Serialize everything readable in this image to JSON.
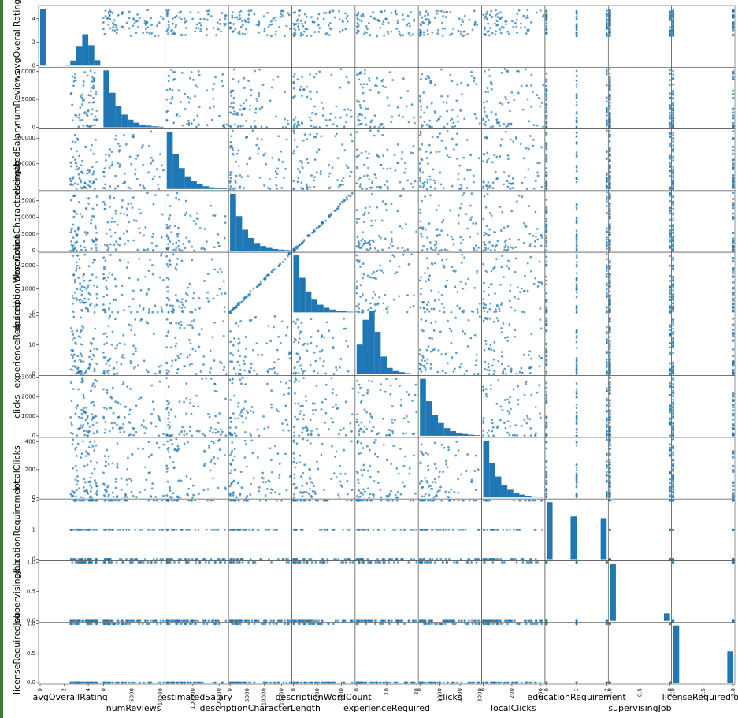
{
  "chart_data": {
    "type": "scatter",
    "variables": [
      {
        "name": "avgOverallRating",
        "range": [
          0,
          5
        ],
        "ticks": [
          {
            "v": 0,
            "t": "0"
          },
          {
            "v": 2,
            "t": "2"
          },
          {
            "v": 4,
            "t": "4"
          }
        ]
      },
      {
        "name": "numReviews",
        "range": [
          0,
          10500
        ],
        "ticks": [
          {
            "v": 0,
            "t": "0"
          },
          {
            "v": 5000,
            "t": "5000"
          },
          {
            "v": 10000,
            "t": "10000"
          }
        ]
      },
      {
        "name": "estimatedSalary",
        "range": [
          0,
          230000
        ],
        "ticks": [
          {
            "v": 100000,
            "t": "100000"
          },
          {
            "v": 200000,
            "t": "200000"
          }
        ]
      },
      {
        "name": "descriptionCharacterLength",
        "range": [
          0,
          17500
        ],
        "ticks": [
          {
            "v": 0,
            "t": "0"
          },
          {
            "v": 5000,
            "t": "5000"
          },
          {
            "v": 10000,
            "t": "10000"
          },
          {
            "v": 15000,
            "t": "15000"
          }
        ]
      },
      {
        "name": "descriptionWordCount",
        "range": [
          0,
          2500
        ],
        "ticks": [
          {
            "v": 0,
            "t": "0"
          },
          {
            "v": 1000,
            "t": "1000"
          },
          {
            "v": 2000,
            "t": "2000"
          }
        ]
      },
      {
        "name": "experienceRequired",
        "range": [
          0,
          20
        ],
        "ticks": [
          {
            "v": 0,
            "t": "0"
          },
          {
            "v": 10,
            "t": "10"
          },
          {
            "v": 20,
            "t": "20"
          }
        ]
      },
      {
        "name": "clicks",
        "range": [
          0,
          3000
        ],
        "ticks": [
          {
            "v": 0,
            "t": "0"
          },
          {
            "v": 1000,
            "t": "1000"
          },
          {
            "v": 2000,
            "t": "2000"
          },
          {
            "v": 3000,
            "t": "3000"
          }
        ]
      },
      {
        "name": "localClicks",
        "range": [
          0,
          420
        ],
        "ticks": [
          {
            "v": 0,
            "t": "0"
          },
          {
            "v": 200,
            "t": "200"
          },
          {
            "v": 400,
            "t": "400"
          }
        ]
      },
      {
        "name": "educationRequirement",
        "range": [
          0,
          2
        ],
        "ticks": [
          {
            "v": 0,
            "t": "0"
          },
          {
            "v": 1,
            "t": "1"
          },
          {
            "v": 2,
            "t": "2"
          }
        ]
      },
      {
        "name": "supervisingJob",
        "range": [
          0,
          1
        ],
        "ticks": [
          {
            "v": 0,
            "t": "0.0"
          },
          {
            "v": 0.5,
            "t": "0.5"
          },
          {
            "v": 1,
            "t": "1.0"
          }
        ]
      },
      {
        "name": "licenseRequiredJob",
        "range": [
          0,
          1
        ],
        "ticks": [
          {
            "v": 0,
            "t": "0.0"
          },
          {
            "v": 0.5,
            "t": "0.5"
          },
          {
            "v": 1,
            "t": "1.0"
          }
        ]
      }
    ],
    "color": "#1f77b4",
    "grid": false,
    "legend": "none",
    "diagonal": "histogram"
  }
}
